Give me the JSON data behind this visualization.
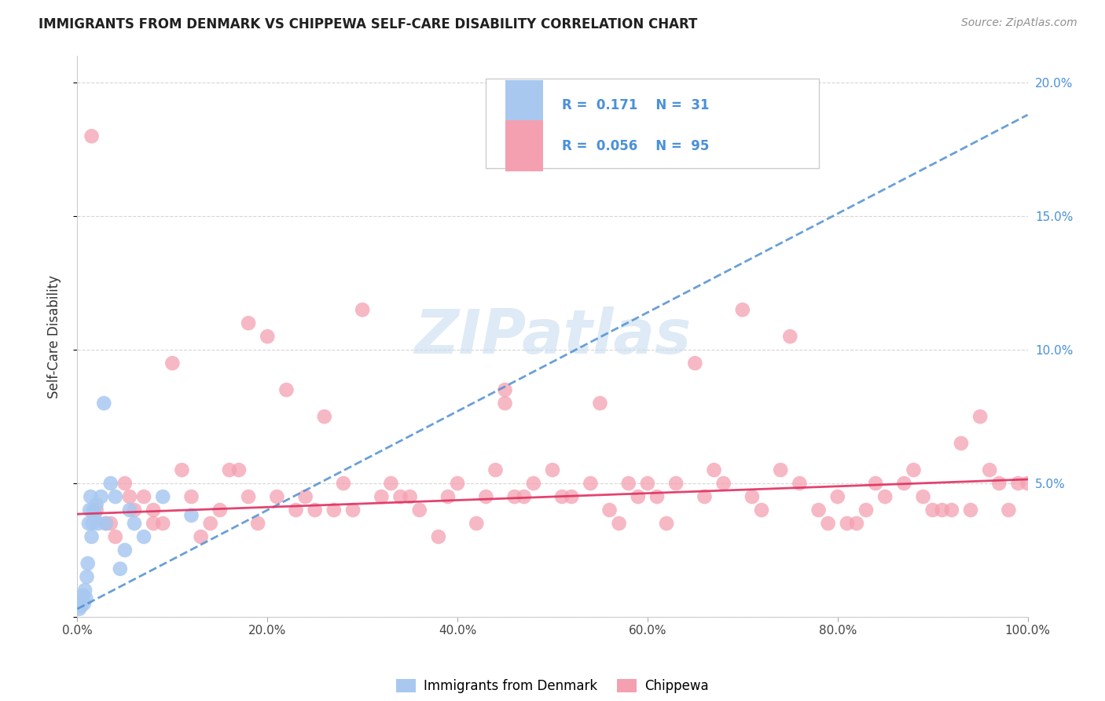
{
  "title": "IMMIGRANTS FROM DENMARK VS CHIPPEWA SELF-CARE DISABILITY CORRELATION CHART",
  "source": "Source: ZipAtlas.com",
  "ylabel": "Self-Care Disability",
  "xlim": [
    0,
    100
  ],
  "ylim": [
    0,
    21
  ],
  "xtick_labels": [
    "0.0%",
    "20.0%",
    "40.0%",
    "60.0%",
    "80.0%",
    "100.0%"
  ],
  "ytick_labels": [
    "",
    "5.0%",
    "10.0%",
    "15.0%",
    "20.0%"
  ],
  "ytick_vals": [
    0,
    5,
    10,
    15,
    20
  ],
  "denmark_R": 0.171,
  "denmark_N": 31,
  "chippewa_R": 0.056,
  "chippewa_N": 95,
  "denmark_color": "#a8c8f0",
  "chippewa_color": "#f4a0b0",
  "denmark_line_color": "#5090d0",
  "chippewa_line_color": "#e03060",
  "background_color": "#ffffff",
  "grid_color": "#cccccc",
  "title_color": "#202020",
  "source_color": "#909090",
  "legend_text_color": "#4a90d9",
  "watermark_color": "#c8ddf0",
  "dk_trend_slope": 0.185,
  "dk_trend_intercept": 0.3,
  "ch_trend_slope": 0.013,
  "ch_trend_intercept": 3.85
}
